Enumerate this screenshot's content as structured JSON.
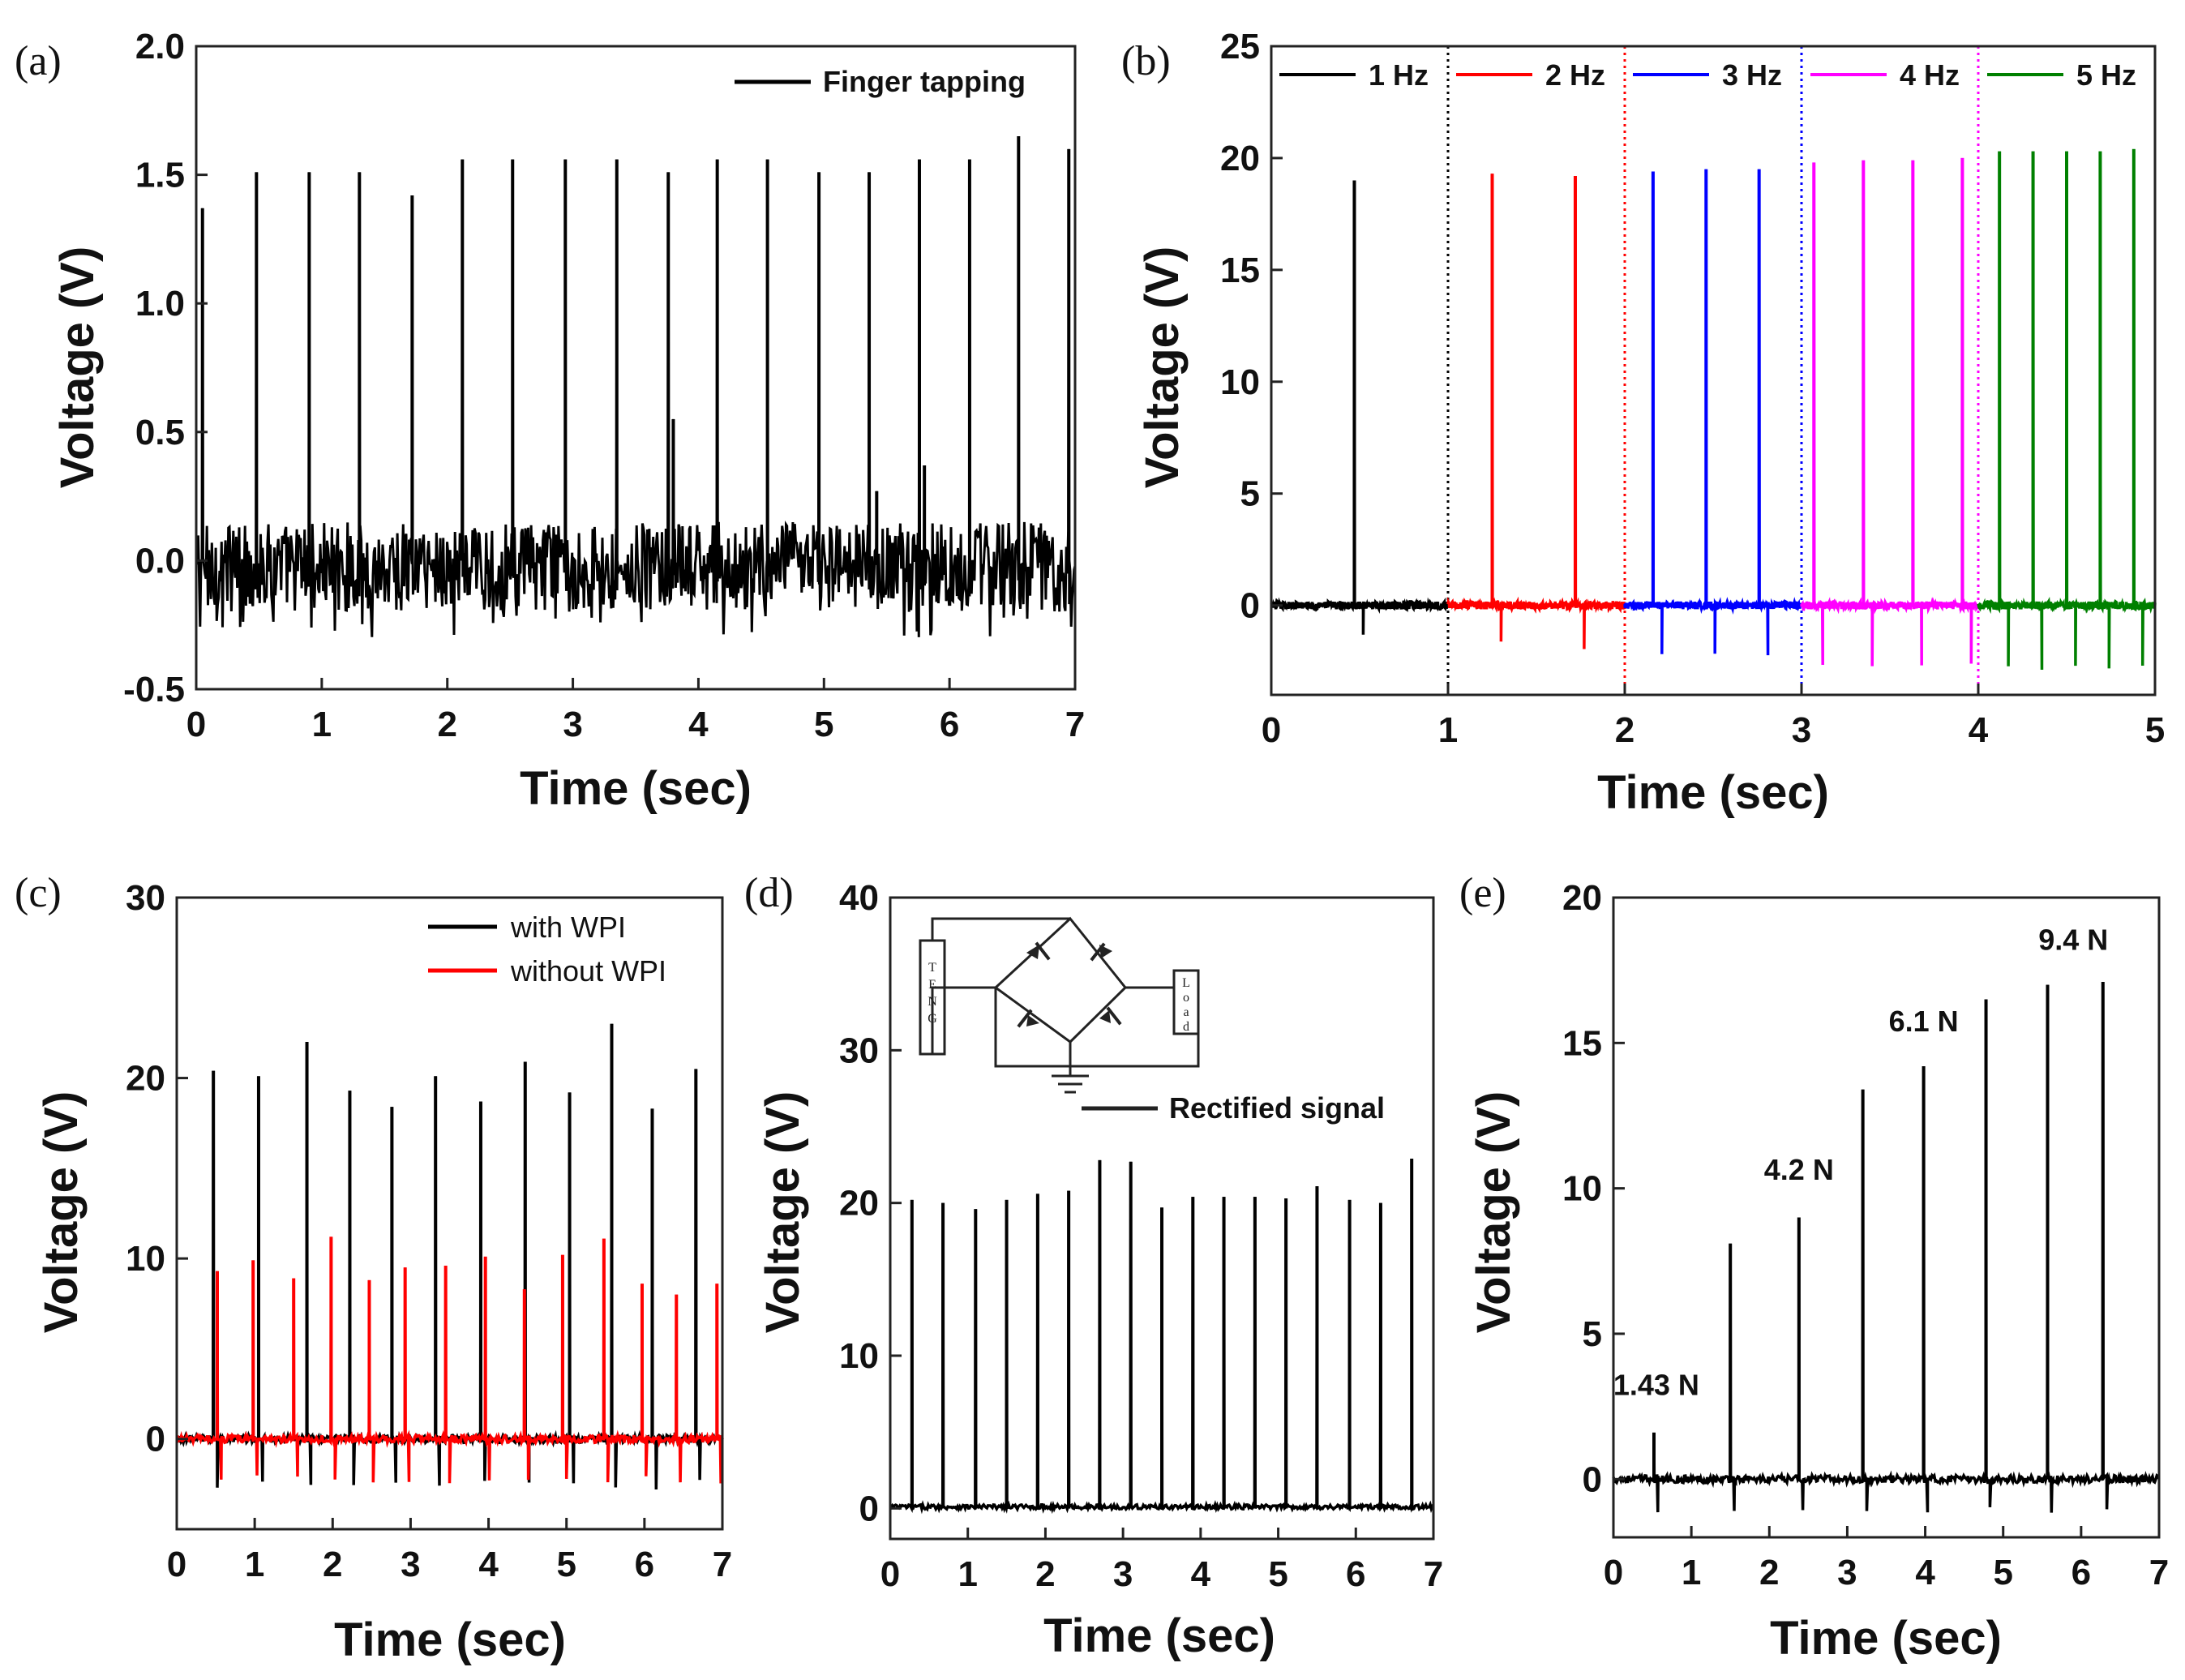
{
  "chart_data": [
    {
      "id": "a",
      "panel_label": "(a)",
      "type": "line",
      "title": "",
      "xlabel": "Time (sec)",
      "ylabel": "Voltage (V)",
      "xlim": [
        0,
        7
      ],
      "ylim": [
        -0.5,
        2.0
      ],
      "xticks": [
        "0",
        "1",
        "2",
        "3",
        "4",
        "5",
        "6",
        "7"
      ],
      "yticks": [
        "-0.5",
        "0.0",
        "0.5",
        "1.0",
        "1.5",
        "2.0"
      ],
      "legend_position": "top-right",
      "series": [
        {
          "name": "Finger tapping",
          "color": "#000000",
          "baseline": 0.0,
          "noise_band": [
            -0.2,
            0.15
          ],
          "spike_x": [
            0.05,
            0.48,
            0.9,
            1.3,
            1.72,
            2.12,
            2.52,
            2.94,
            3.35,
            3.76,
            4.15,
            4.55,
            4.96,
            5.36,
            5.76,
            6.16,
            6.55,
            6.95
          ],
          "spike_peaks": [
            1.37,
            1.51,
            1.51,
            1.51,
            1.42,
            1.56,
            1.56,
            1.56,
            1.56,
            1.51,
            1.56,
            1.56,
            1.51,
            1.51,
            1.56,
            1.56,
            1.65,
            1.6
          ],
          "extra_spikes_x": [
            3.8,
            5.42,
            5.8
          ],
          "extra_spikes_peaks": [
            0.55,
            0.27,
            0.37
          ],
          "trough": -0.3
        }
      ]
    },
    {
      "id": "b",
      "panel_label": "(b)",
      "type": "line",
      "title": "",
      "xlabel": "Time (sec)",
      "ylabel": "Voltage (V)",
      "xlim": [
        0,
        5
      ],
      "ylim": [
        -4,
        25
      ],
      "xticks": [
        "0",
        "1",
        "2",
        "3",
        "4",
        "5"
      ],
      "yticks": [
        "0",
        "5",
        "10",
        "15",
        "20",
        "25"
      ],
      "legend_position": "top",
      "dividers_x": [
        1,
        2,
        3,
        4
      ],
      "series": [
        {
          "name": "1 Hz",
          "color": "#000000",
          "x_range": [
            0,
            1
          ],
          "spike_x": [
            0.47
          ],
          "spike_peaks": [
            19.0
          ],
          "trough": -1.5
        },
        {
          "name": "2 Hz",
          "color": "#ff0000",
          "x_range": [
            1,
            2
          ],
          "spike_x": [
            1.25,
            1.72
          ],
          "spike_peaks": [
            19.3,
            19.2
          ],
          "trough": -2.0
        },
        {
          "name": "3 Hz",
          "color": "#0000ff",
          "x_range": [
            2,
            3
          ],
          "spike_x": [
            2.16,
            2.46,
            2.76
          ],
          "spike_peaks": [
            19.4,
            19.5,
            19.5
          ],
          "trough": -2.3
        },
        {
          "name": "4 Hz",
          "color": "#ff00ff",
          "x_range": [
            3,
            4
          ],
          "spike_x": [
            3.07,
            3.35,
            3.63,
            3.91
          ],
          "spike_peaks": [
            19.8,
            19.9,
            19.9,
            20.0
          ],
          "trough": -3.0
        },
        {
          "name": "5 Hz",
          "color": "#008000",
          "x_range": [
            4,
            5
          ],
          "spike_x": [
            4.12,
            4.31,
            4.5,
            4.69,
            4.88
          ],
          "spike_peaks": [
            20.3,
            20.3,
            20.3,
            20.3,
            20.4
          ],
          "trough": -3.3
        }
      ]
    },
    {
      "id": "c",
      "panel_label": "(c)",
      "type": "line",
      "title": "",
      "xlabel": "Time (sec)",
      "ylabel": "Voltage (V)",
      "xlim": [
        0,
        7
      ],
      "ylim": [
        -5,
        30
      ],
      "xticks": [
        "0",
        "1",
        "2",
        "3",
        "4",
        "5",
        "6",
        "7"
      ],
      "yticks": [
        "0",
        "10",
        "20",
        "30"
      ],
      "legend_position": "top-right",
      "series": [
        {
          "name": "with WPI",
          "color": "#000000",
          "spike_x": [
            0.47,
            1.05,
            1.67,
            2.22,
            2.76,
            3.32,
            3.9,
            4.47,
            5.04,
            5.58,
            6.1,
            6.66
          ],
          "spike_peaks": [
            20.4,
            20.1,
            22.0,
            19.3,
            18.4,
            20.1,
            18.7,
            20.9,
            19.2,
            23.0,
            18.3,
            20.5
          ],
          "trough": -2.8
        },
        {
          "name": "without WPI",
          "color": "#ff0000",
          "spike_x": [
            0.52,
            0.98,
            1.5,
            1.98,
            2.47,
            2.93,
            3.45,
            3.96,
            4.46,
            4.95,
            5.48,
            5.97,
            6.41,
            6.93
          ],
          "spike_peaks": [
            9.3,
            9.9,
            8.9,
            11.2,
            8.8,
            9.5,
            9.6,
            10.1,
            8.3,
            10.2,
            11.1,
            8.6,
            8.0,
            8.6
          ],
          "trough": -2.5
        }
      ]
    },
    {
      "id": "d",
      "panel_label": "(d)",
      "type": "line",
      "title": "",
      "xlabel": "Time (sec)",
      "ylabel": "Voltage (V)",
      "xlim": [
        0,
        7
      ],
      "ylim": [
        -2,
        40
      ],
      "xticks": [
        "0",
        "1",
        "2",
        "3",
        "4",
        "5",
        "6",
        "7"
      ],
      "yticks": [
        "0",
        "10",
        "20",
        "30",
        "40"
      ],
      "legend_position": "inset-right",
      "series": [
        {
          "name": "Rectified signal",
          "color": "#000000",
          "spike_x": [
            0.28,
            0.68,
            1.1,
            1.5,
            1.9,
            2.3,
            2.7,
            3.1,
            3.5,
            3.9,
            4.3,
            4.7,
            5.1,
            5.5,
            5.92,
            6.32,
            6.72
          ],
          "spike_peaks": [
            20.2,
            20.0,
            19.6,
            20.2,
            20.6,
            20.8,
            22.8,
            22.7,
            19.7,
            20.4,
            20.4,
            20.4,
            20.3,
            21.1,
            20.2,
            20.0,
            22.9
          ],
          "trough": 0
        }
      ],
      "inset": {
        "type": "circuit-diagram",
        "source_label": "TENG",
        "load_label": "Load"
      }
    },
    {
      "id": "e",
      "panel_label": "(e)",
      "type": "line",
      "title": "",
      "xlabel": "Time (sec)",
      "ylabel": "Voltage (V)",
      "xlim": [
        0,
        7
      ],
      "ylim": [
        -2,
        20
      ],
      "xticks": [
        "0",
        "1",
        "2",
        "3",
        "4",
        "5",
        "6",
        "7"
      ],
      "yticks": [
        "0",
        "5",
        "10",
        "15",
        "20"
      ],
      "legend_position": "none",
      "series": [
        {
          "name": "Voltage",
          "color": "#000000",
          "spike_x": [
            0.52,
            1.5,
            2.38,
            3.2,
            3.98,
            4.78,
            5.57,
            6.28
          ],
          "spike_peaks": [
            1.6,
            8.1,
            9.0,
            13.4,
            14.2,
            16.5,
            17.0,
            17.1
          ],
          "trough": -1.2
        }
      ],
      "annotations": [
        {
          "text": "1.43 N",
          "x": 0.55,
          "y": 2.9
        },
        {
          "text": "4.2 N",
          "x": 2.38,
          "y": 10.3
        },
        {
          "text": "6.1 N",
          "x": 3.98,
          "y": 15.4
        },
        {
          "text": "9.4 N",
          "x": 5.9,
          "y": 18.2
        }
      ]
    }
  ]
}
